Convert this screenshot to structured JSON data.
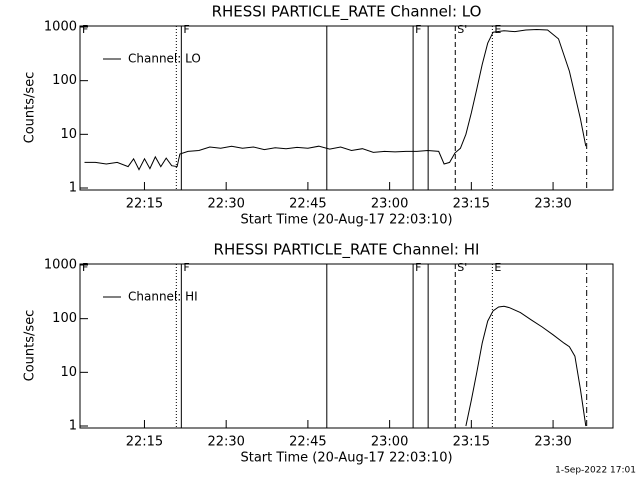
{
  "chart_data": [
    {
      "type": "line",
      "title": "RHESSI PARTICLE_RATE Channel: LO",
      "xlabel": "Start Time (20-Aug-17 22:03:10)",
      "ylabel": "Counts/sec",
      "log_y": true,
      "xlim": [
        1323.17,
        1421
      ],
      "ylim": [
        1,
        1000
      ],
      "yticks": [
        1,
        10,
        100,
        1000
      ],
      "xticks": [
        {
          "value": 1335,
          "label": "22:15"
        },
        {
          "value": 1350,
          "label": "22:30"
        },
        {
          "value": 1365,
          "label": "22:45"
        },
        {
          "value": 1380,
          "label": "23:00"
        },
        {
          "value": 1395,
          "label": "23:15"
        },
        {
          "value": 1410,
          "label": "23:30"
        }
      ],
      "legend": "upper left",
      "markers": [
        {
          "x": 1323.17,
          "style": "none",
          "label": "F"
        },
        {
          "x": 1340.85,
          "style": "dotted"
        },
        {
          "x": 1341.77,
          "style": "solid",
          "label": "F"
        },
        {
          "x": 1368.47,
          "style": "solid"
        },
        {
          "x": 1384.31,
          "style": "solid",
          "label": "F"
        },
        {
          "x": 1387.07,
          "style": "solid"
        },
        {
          "x": 1392.05,
          "style": "dashed",
          "label": "S'"
        },
        {
          "x": 1398.86,
          "style": "dotted",
          "label": "E"
        },
        {
          "x": 1416.17,
          "style": "dashdot"
        }
      ],
      "series": [
        {
          "name": "Channel: LO",
          "color": "#000000",
          "x": [
            1324,
            1326,
            1328,
            1330,
            1332,
            1333,
            1334,
            1335,
            1336,
            1337,
            1338,
            1339,
            1340,
            1341,
            1341.5,
            1343,
            1345,
            1347,
            1349,
            1351,
            1353,
            1355,
            1357,
            1359,
            1361,
            1363,
            1365,
            1367,
            1369,
            1371,
            1373,
            1375,
            1377,
            1379,
            1381,
            1383,
            1385,
            1387,
            1389,
            1390,
            1391,
            1392,
            1393,
            1394,
            1395,
            1396,
            1397,
            1398,
            1399,
            1401,
            1403,
            1405,
            1407,
            1409,
            1411,
            1413,
            1415,
            1416
          ],
          "values": [
            3,
            3,
            2.8,
            3,
            2.5,
            3.5,
            2.2,
            3.5,
            2.3,
            3.8,
            2.5,
            3.6,
            2.6,
            2.5,
            4.3,
            4.8,
            5,
            5.8,
            5.5,
            6,
            5.5,
            5.8,
            5.2,
            5.6,
            5.4,
            5.7,
            5.5,
            6,
            5.3,
            5.8,
            5,
            5.4,
            4.6,
            4.8,
            4.7,
            4.8,
            4.8,
            5,
            4.8,
            2.8,
            3,
            4.5,
            5.5,
            10,
            25,
            70,
            200,
            500,
            800,
            850,
            820,
            880,
            900,
            880,
            600,
            150,
            20,
            6
          ]
        }
      ]
    },
    {
      "type": "line",
      "title": "RHESSI PARTICLE_RATE Channel: HI",
      "xlabel": "Start Time (20-Aug-17 22:03:10)",
      "ylabel": "Counts/sec",
      "log_y": true,
      "xlim": [
        1323.17,
        1421
      ],
      "ylim": [
        1,
        1000
      ],
      "yticks": [
        1,
        10,
        100,
        1000
      ],
      "xticks": [
        {
          "value": 1335,
          "label": "22:15"
        },
        {
          "value": 1350,
          "label": "22:30"
        },
        {
          "value": 1365,
          "label": "22:45"
        },
        {
          "value": 1380,
          "label": "23:00"
        },
        {
          "value": 1395,
          "label": "23:15"
        },
        {
          "value": 1410,
          "label": "23:30"
        }
      ],
      "legend": "upper left",
      "markers": [
        {
          "x": 1323.17,
          "style": "none",
          "label": "F"
        },
        {
          "x": 1340.85,
          "style": "dotted"
        },
        {
          "x": 1341.77,
          "style": "solid",
          "label": "F"
        },
        {
          "x": 1368.47,
          "style": "solid"
        },
        {
          "x": 1384.31,
          "style": "solid",
          "label": "F"
        },
        {
          "x": 1387.07,
          "style": "solid"
        },
        {
          "x": 1392.05,
          "style": "dashed",
          "label": "S'"
        },
        {
          "x": 1398.86,
          "style": "dotted",
          "label": "E"
        },
        {
          "x": 1416.17,
          "style": "dashdot"
        }
      ],
      "series": [
        {
          "name": "Channel: HI",
          "color": "#000000",
          "x": [
            1394,
            1395,
            1396,
            1397,
            1398,
            1399,
            1400,
            1401,
            1402,
            1404,
            1406,
            1408,
            1410,
            1412,
            1413,
            1414,
            1415,
            1416
          ],
          "values": [
            1,
            3,
            10,
            35,
            90,
            140,
            165,
            170,
            160,
            130,
            95,
            70,
            50,
            35,
            30,
            20,
            5,
            1
          ]
        }
      ]
    }
  ],
  "footer": "1-Sep-2022 17:01"
}
